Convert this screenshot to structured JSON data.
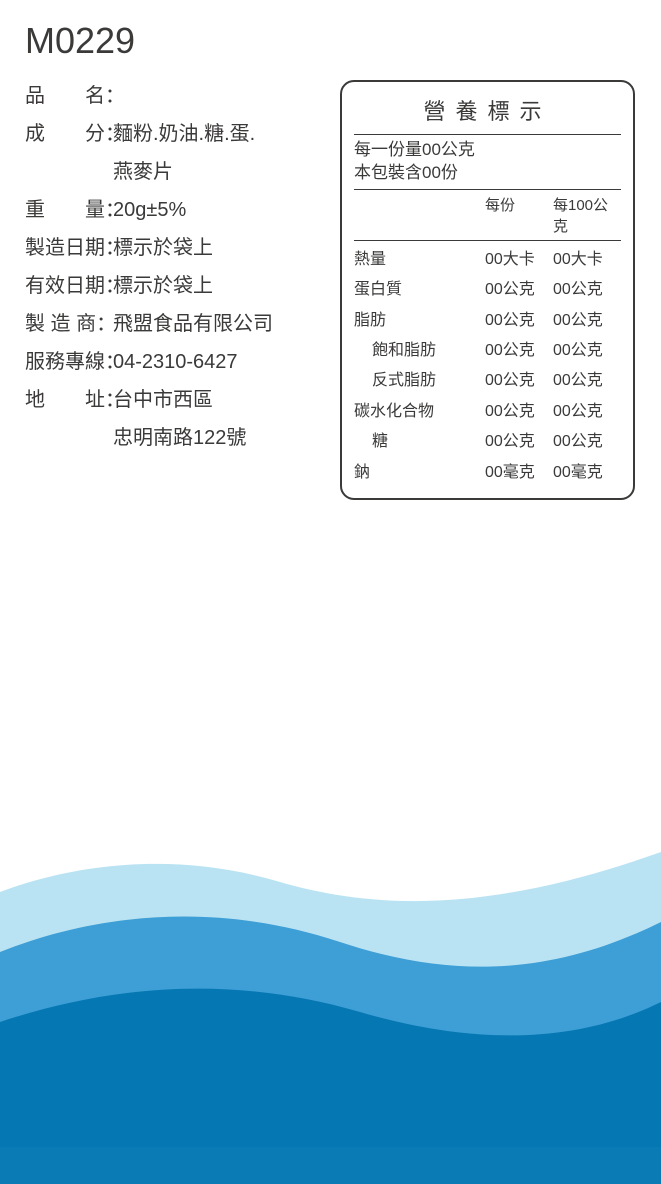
{
  "code": "M0229",
  "colors": {
    "text": "#3b3a39",
    "wave_light": "#b9e3f3",
    "wave_mid": "#3e9ed6",
    "wave_dark": "#0577b2",
    "wave_base": "#0a7bb5"
  },
  "info": [
    {
      "label": "品　　名",
      "value": ""
    },
    {
      "label": "成　　分",
      "value": "麵粉.奶油.糖.蛋."
    },
    {
      "label": "",
      "value": "燕麥片"
    },
    {
      "label": "重　　量",
      "value": "20g±5%"
    },
    {
      "label": "製造日期",
      "value": "標示於袋上"
    },
    {
      "label": "有效日期",
      "value": "標示於袋上"
    },
    {
      "label": "製 造 商",
      "value": "飛盟食品有限公司"
    },
    {
      "label": "服務專線",
      "value": "04-2310-6427"
    },
    {
      "label": "地　　址",
      "value": "台中市西區"
    },
    {
      "label": "",
      "value": "忠明南路122號"
    }
  ],
  "nutrition": {
    "title": "營養標示",
    "serving_size": "每一份量00公克",
    "servings_per_pack": "本包裝含00份",
    "header_per": "每份",
    "header_per100": "每100公克",
    "rows": [
      {
        "name": "熱量",
        "per": "00大卡",
        "per100": "00大卡",
        "indent": false
      },
      {
        "name": "蛋白質",
        "per": "00公克",
        "per100": "00公克",
        "indent": false
      },
      {
        "name": "脂肪",
        "per": "00公克",
        "per100": "00公克",
        "indent": false
      },
      {
        "name": "飽和脂肪",
        "per": "00公克",
        "per100": "00公克",
        "indent": true
      },
      {
        "name": "反式脂肪",
        "per": "00公克",
        "per100": "00公克",
        "indent": true
      },
      {
        "name": "碳水化合物",
        "per": "00公克",
        "per100": "00公克",
        "indent": false
      },
      {
        "name": "糖",
        "per": "00公克",
        "per100": "00公克",
        "indent": true
      },
      {
        "name": "鈉",
        "per": "00毫克",
        "per100": "00毫克",
        "indent": false
      }
    ]
  }
}
